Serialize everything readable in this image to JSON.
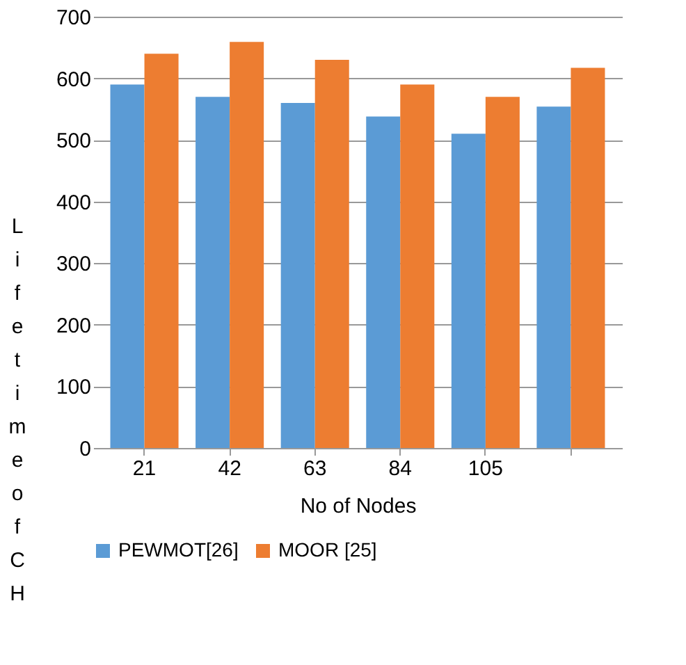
{
  "chart_data": {
    "type": "bar",
    "xlabel": "No of Nodes",
    "ylabel": "Lifetime of CH",
    "categories": [
      "21",
      "42",
      "63",
      "84",
      "105",
      null
    ],
    "series": [
      {
        "name": "PEWMOT[26]",
        "color": "#5b9bd5",
        "values": [
          590,
          570,
          560,
          538,
          510,
          554
        ]
      },
      {
        "name": "MOOR [25]",
        "color": "#ed7d31",
        "values": [
          640,
          659,
          630,
          590,
          570,
          617
        ]
      }
    ],
    "ylim": [
      0,
      700
    ],
    "yticks": [
      0,
      100,
      200,
      300,
      400,
      500,
      600,
      700
    ],
    "grid": "y",
    "legend": "bottom"
  }
}
